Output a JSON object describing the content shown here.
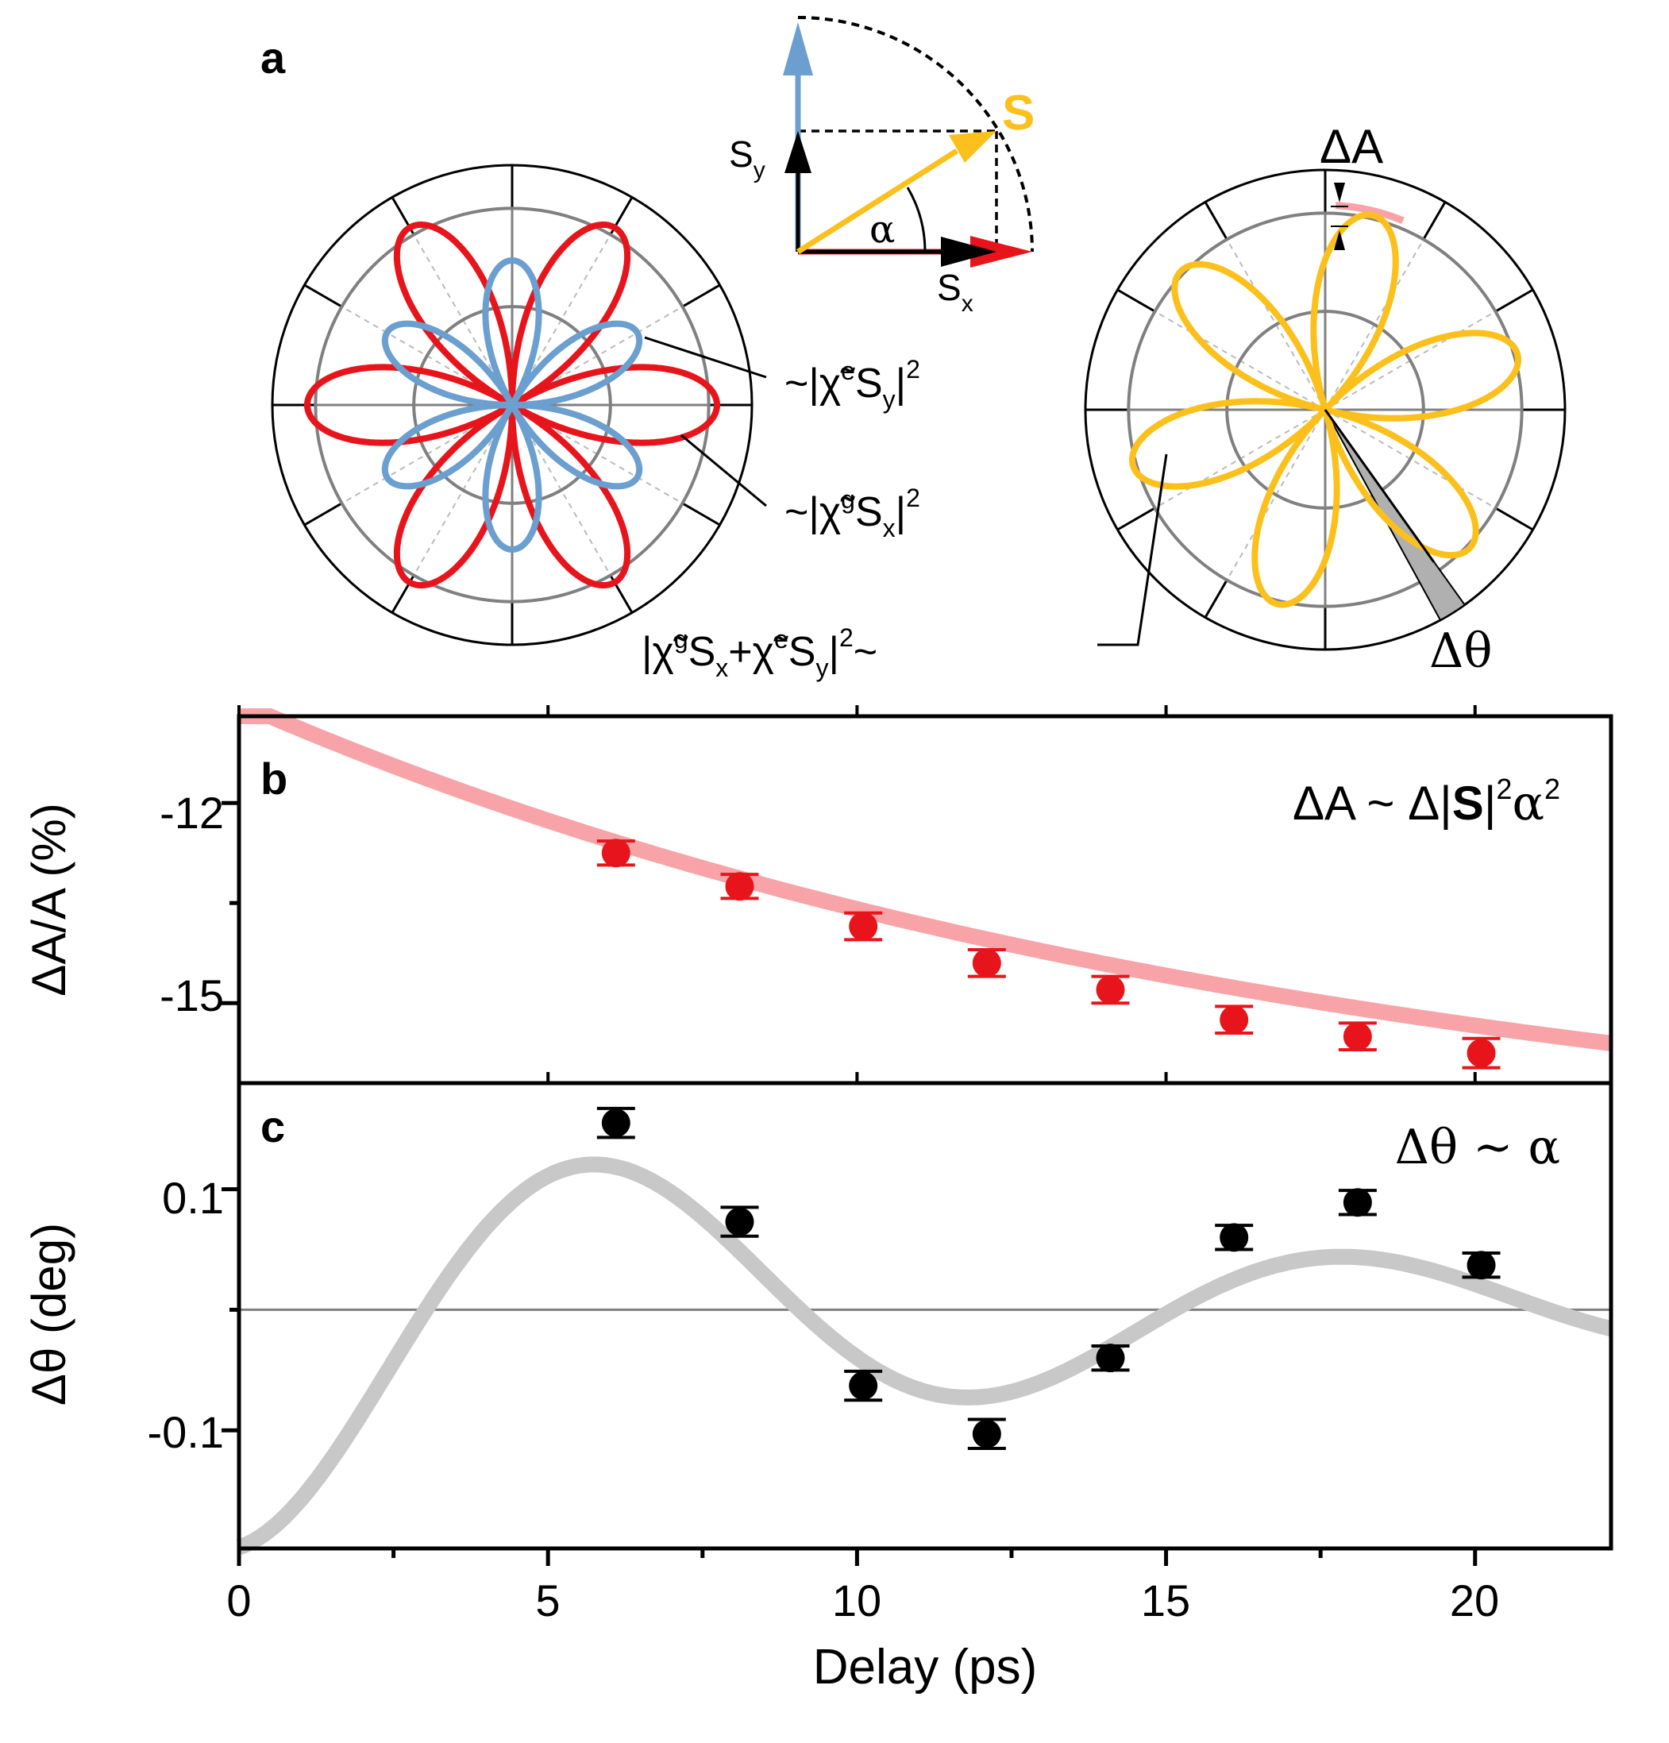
{
  "panel_a": {
    "label": "a",
    "vector_diagram": {
      "s_label": "S",
      "sy_label": "S",
      "sy_sub": "y",
      "sx_label": "S",
      "sx_sub": "x",
      "alpha_label": "α"
    },
    "left_polar": {
      "annotation_y_prefix": "~|χ̃",
      "annotation_y_sup": "e",
      "annotation_y_mid": "S",
      "annotation_y_sub": "y",
      "annotation_y_end": "|",
      "annotation_y_pow": "2",
      "annotation_x_prefix": "~|χ̃",
      "annotation_x_sup": "g",
      "annotation_x_mid": "S",
      "annotation_x_sub": "x",
      "annotation_x_end": "|",
      "annotation_x_pow": "2"
    },
    "right_polar": {
      "delta_a_label": "ΔA",
      "delta_theta_label": "Δθ",
      "sum_p1": "|χ̃",
      "sum_sup1": "g",
      "sum_p2": "S",
      "sum_sub1": "x",
      "sum_p3": "+χ̃",
      "sum_sup2": "e",
      "sum_p4": "S",
      "sum_sub2": "y",
      "sum_p5": "|",
      "sum_pow": "2",
      "sum_p6": "~"
    },
    "colors": {
      "red": "#e8141b",
      "blue": "#6a9fd0",
      "yellow": "#fcc01c",
      "ring_gray": "#808080",
      "delta_a_pink": "#f7a3a8",
      "wedge_gray": "#b0b0b0"
    }
  },
  "chart_data": [
    {
      "panel": "b",
      "type": "scatter",
      "label": "b",
      "annotation_prefix": "ΔA ~ Δ|",
      "annotation_bold": "S",
      "annotation_mid": "|",
      "annotation_sup1": "2",
      "annotation_alpha": "α",
      "annotation_sup2": "2",
      "ylabel": "ΔA/A (%)",
      "xlim": [
        0,
        22.2
      ],
      "ylim": [
        -16.2,
        -10.7
      ],
      "yticks": [
        -12,
        -15
      ],
      "ytick_labels": [
        "-12",
        "-15"
      ],
      "minor_yticks": [
        -13.5
      ],
      "x": [
        6.1,
        8.1,
        10.1,
        12.1,
        14.1,
        16.1,
        18.1,
        20.1
      ],
      "y": [
        -12.75,
        -13.25,
        -13.85,
        -14.4,
        -14.8,
        -15.25,
        -15.5,
        -15.75
      ],
      "yerr": [
        0.18,
        0.18,
        0.2,
        0.2,
        0.2,
        0.2,
        0.2,
        0.22
      ],
      "fit": {
        "type": "exponential",
        "a": -17.6,
        "b": 7.1,
        "tau": 17.5
      },
      "colors": {
        "points": "#e8141b",
        "fit": "#f7a3a8"
      }
    },
    {
      "panel": "c",
      "type": "scatter",
      "label": "c",
      "annotation": "Δθ ~ α",
      "ylabel": "Δθ (deg)",
      "xlabel": "Delay (ps)",
      "xlim": [
        0,
        22.2
      ],
      "ylim": [
        -0.198,
        0.188
      ],
      "xticks": [
        0,
        5,
        10,
        15,
        20
      ],
      "xtick_labels": [
        "0",
        "5",
        "10",
        "15",
        "20"
      ],
      "minor_xticks": [
        2.5,
        7.5,
        12.5,
        17.5
      ],
      "yticks": [
        0.1,
        -0.1
      ],
      "ytick_labels": [
        "0.1",
        "-0.1"
      ],
      "minor_yticks": [
        0.0
      ],
      "zero_line": 0.0,
      "x": [
        6.1,
        8.1,
        10.1,
        12.1,
        14.1,
        16.1,
        18.1,
        20.1
      ],
      "y": [
        0.155,
        0.073,
        -0.063,
        -0.103,
        -0.04,
        0.06,
        0.089,
        0.037
      ],
      "yerr": [
        0.012,
        0.012,
        0.012,
        0.012,
        0.01,
        0.01,
        0.01,
        0.01
      ],
      "fit": {
        "type": "damped_cosine",
        "amp": 0.197,
        "tau": 12.0,
        "period": 12.1,
        "offset": 0.0
      },
      "colors": {
        "points": "#000000",
        "fit": "#c8c8c8"
      }
    }
  ]
}
